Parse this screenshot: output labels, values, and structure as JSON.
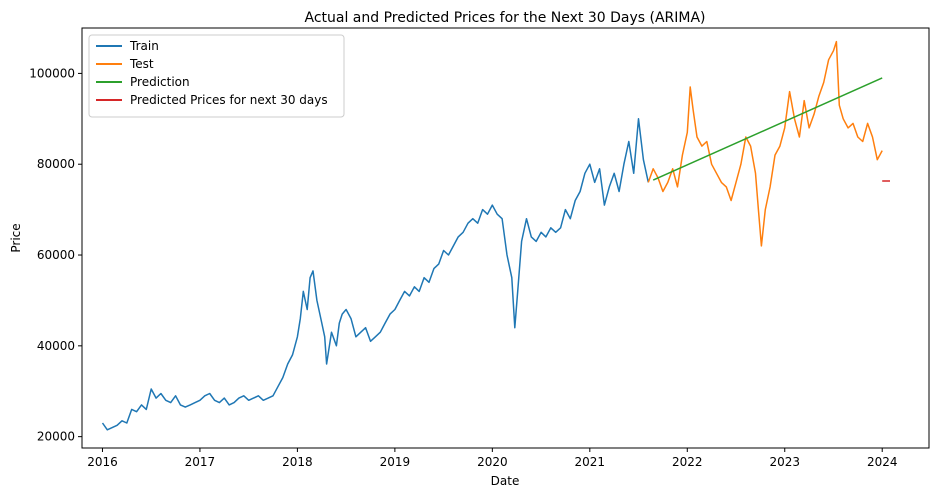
{
  "chart_data": {
    "type": "line",
    "title": "Actual and Predicted Prices for the Next 30 Days (ARIMA)",
    "xlabel": "Date",
    "ylabel": "Price",
    "xlim": [
      2015.79,
      2024.48
    ],
    "ylim": [
      17500,
      110000
    ],
    "x_ticks": [
      2016,
      2017,
      2018,
      2019,
      2020,
      2021,
      2022,
      2023,
      2024
    ],
    "x_tick_labels": [
      "2016",
      "2017",
      "2018",
      "2019",
      "2020",
      "2021",
      "2022",
      "2023",
      "2024"
    ],
    "y_ticks": [
      20000,
      40000,
      60000,
      80000,
      100000
    ],
    "y_tick_labels": [
      "20000",
      "40000",
      "60000",
      "80000",
      "100000"
    ],
    "grid": false,
    "legend_position": "top-left",
    "series": [
      {
        "name": "Train",
        "color": "#1f77b4",
        "x": [
          2016.0,
          2016.05,
          2016.1,
          2016.15,
          2016.2,
          2016.25,
          2016.3,
          2016.35,
          2016.4,
          2016.45,
          2016.5,
          2016.55,
          2016.6,
          2016.65,
          2016.7,
          2016.75,
          2016.8,
          2016.85,
          2016.9,
          2016.95,
          2017.0,
          2017.05,
          2017.1,
          2017.15,
          2017.2,
          2017.25,
          2017.3,
          2017.35,
          2017.4,
          2017.45,
          2017.5,
          2017.55,
          2017.6,
          2017.65,
          2017.7,
          2017.75,
          2017.8,
          2017.85,
          2017.9,
          2017.95,
          2018.0,
          2018.03,
          2018.06,
          2018.1,
          2018.13,
          2018.16,
          2018.2,
          2018.25,
          2018.28,
          2018.3,
          2018.35,
          2018.4,
          2018.43,
          2018.46,
          2018.5,
          2018.55,
          2018.6,
          2018.65,
          2018.7,
          2018.75,
          2018.8,
          2018.85,
          2018.9,
          2018.95,
          2019.0,
          2019.05,
          2019.1,
          2019.15,
          2019.2,
          2019.25,
          2019.3,
          2019.35,
          2019.4,
          2019.45,
          2019.5,
          2019.55,
          2019.6,
          2019.65,
          2019.7,
          2019.75,
          2019.8,
          2019.85,
          2019.9,
          2019.95,
          2020.0,
          2020.05,
          2020.1,
          2020.15,
          2020.2,
          2020.23,
          2020.26,
          2020.3,
          2020.35,
          2020.4,
          2020.45,
          2020.5,
          2020.55,
          2020.6,
          2020.65,
          2020.7,
          2020.75,
          2020.8,
          2020.85,
          2020.9,
          2020.95,
          2021.0,
          2021.05,
          2021.1,
          2021.15,
          2021.2,
          2021.25,
          2021.3,
          2021.35,
          2021.4,
          2021.45,
          2021.5,
          2021.55,
          2021.6
        ],
        "y": [
          23000,
          21500,
          22000,
          22500,
          23500,
          23000,
          26000,
          25500,
          27000,
          26000,
          30500,
          28500,
          29500,
          28000,
          27500,
          29000,
          27000,
          26500,
          27000,
          27500,
          28000,
          29000,
          29500,
          28000,
          27500,
          28500,
          27000,
          27500,
          28500,
          29000,
          28000,
          28500,
          29000,
          28000,
          28500,
          29000,
          31000,
          33000,
          36000,
          38000,
          42000,
          46000,
          52000,
          48000,
          55000,
          56500,
          50000,
          45000,
          42000,
          36000,
          43000,
          40000,
          45000,
          47000,
          48000,
          46000,
          42000,
          43000,
          44000,
          41000,
          42000,
          43000,
          45000,
          47000,
          48000,
          50000,
          52000,
          51000,
          53000,
          52000,
          55000,
          54000,
          57000,
          58000,
          61000,
          60000,
          62000,
          64000,
          65000,
          67000,
          68000,
          67000,
          70000,
          69000,
          71000,
          69000,
          68000,
          60000,
          55000,
          44000,
          52000,
          63000,
          68000,
          64000,
          63000,
          65000,
          64000,
          66000,
          65000,
          66000,
          70000,
          68000,
          72000,
          74000,
          78000,
          80000,
          76000,
          79000,
          71000,
          75000,
          78000,
          74000,
          80000,
          85000,
          78000,
          90000,
          81000,
          76000
        ]
      },
      {
        "name": "Test",
        "color": "#ff7f0e",
        "x": [
          2021.6,
          2021.65,
          2021.7,
          2021.75,
          2021.8,
          2021.85,
          2021.9,
          2021.95,
          2022.0,
          2022.03,
          2022.06,
          2022.1,
          2022.15,
          2022.2,
          2022.25,
          2022.3,
          2022.35,
          2022.4,
          2022.45,
          2022.5,
          2022.55,
          2022.6,
          2022.65,
          2022.7,
          2022.73,
          2022.76,
          2022.8,
          2022.85,
          2022.9,
          2022.95,
          2023.0,
          2023.05,
          2023.1,
          2023.15,
          2023.2,
          2023.25,
          2023.3,
          2023.35,
          2023.4,
          2023.45,
          2023.5,
          2023.53,
          2023.56,
          2023.6,
          2023.65,
          2023.7,
          2023.75,
          2023.8,
          2023.85,
          2023.9,
          2023.95,
          2024.0
        ],
        "y": [
          76000,
          79000,
          77000,
          74000,
          76000,
          79000,
          75000,
          82000,
          87000,
          97000,
          92000,
          86000,
          84000,
          85000,
          80000,
          78000,
          76000,
          75000,
          72000,
          76000,
          80000,
          86000,
          84000,
          78000,
          70000,
          62000,
          70000,
          75000,
          82000,
          84000,
          88000,
          96000,
          90000,
          86000,
          94000,
          88000,
          91000,
          95000,
          98000,
          103000,
          105000,
          107000,
          93000,
          90000,
          88000,
          89000,
          86000,
          85000,
          89000,
          86000,
          81000,
          83000
        ]
      },
      {
        "name": "Prediction",
        "color": "#2ca02c",
        "x": [
          2021.65,
          2024.0
        ],
        "y": [
          76500,
          99000
        ]
      },
      {
        "name": "Predicted Prices for next 30 days",
        "color": "#d62728",
        "x": [
          2024.0,
          2024.08
        ],
        "y": [
          76300,
          76300
        ]
      }
    ]
  }
}
